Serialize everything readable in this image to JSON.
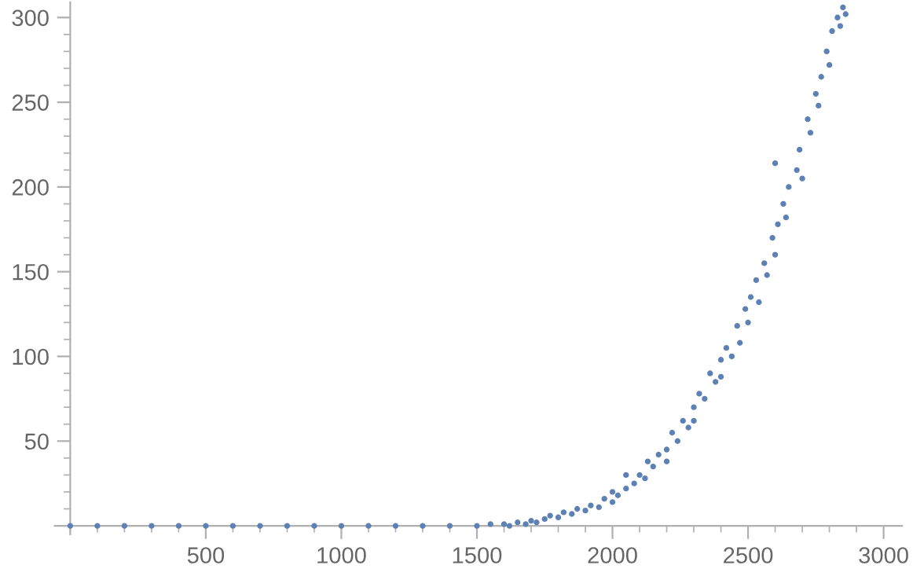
{
  "chart_data": {
    "type": "scatter",
    "color": "#5e81b5",
    "marker": "circle",
    "grid": false,
    "legend": false,
    "xlim": [
      -57,
      3068
    ],
    "ylim": [
      -5,
      309
    ],
    "xticks": [
      500,
      1000,
      1500,
      2000,
      2500,
      3000
    ],
    "yticks": [
      50,
      100,
      150,
      200,
      250,
      300
    ],
    "x": [
      0,
      100,
      200,
      300,
      400,
      500,
      600,
      700,
      800,
      900,
      1000,
      1100,
      1200,
      1300,
      1400,
      1500,
      1550,
      1600,
      1620,
      1650,
      1680,
      1700,
      1720,
      1750,
      1770,
      1800,
      1820,
      1850,
      1870,
      1900,
      1920,
      1950,
      1970,
      2000,
      2000,
      2020,
      2050,
      2050,
      2080,
      2100,
      2120,
      2130,
      2150,
      2170,
      2200,
      2200,
      2220,
      2240,
      2260,
      2280,
      2300,
      2300,
      2320,
      2340,
      2360,
      2380,
      2400,
      2400,
      2420,
      2440,
      2460,
      2470,
      2490,
      2500,
      2510,
      2530,
      2540,
      2560,
      2570,
      2590,
      2600,
      2600,
      2610,
      2630,
      2640,
      2650,
      2680,
      2690,
      2700,
      2720,
      2730,
      2750,
      2760,
      2770,
      2790,
      2800,
      2810,
      2830,
      2840,
      2850,
      2860
    ],
    "values": [
      0,
      0,
      0,
      0,
      0,
      0,
      0,
      0,
      0,
      0,
      0,
      0,
      0,
      0,
      0,
      0,
      1,
      1,
      0,
      2,
      1,
      3,
      2,
      4,
      6,
      5,
      8,
      7,
      10,
      9,
      12,
      11,
      16,
      14,
      20,
      18,
      22,
      30,
      25,
      30,
      28,
      38,
      35,
      42,
      45,
      38,
      55,
      50,
      62,
      58,
      70,
      62,
      78,
      75,
      90,
      85,
      98,
      88,
      105,
      100,
      118,
      108,
      128,
      120,
      135,
      145,
      132,
      155,
      148,
      170,
      160,
      214,
      178,
      190,
      182,
      200,
      210,
      222,
      205,
      240,
      232,
      255,
      248,
      265,
      280,
      272,
      292,
      300,
      295,
      306,
      302
    ]
  }
}
